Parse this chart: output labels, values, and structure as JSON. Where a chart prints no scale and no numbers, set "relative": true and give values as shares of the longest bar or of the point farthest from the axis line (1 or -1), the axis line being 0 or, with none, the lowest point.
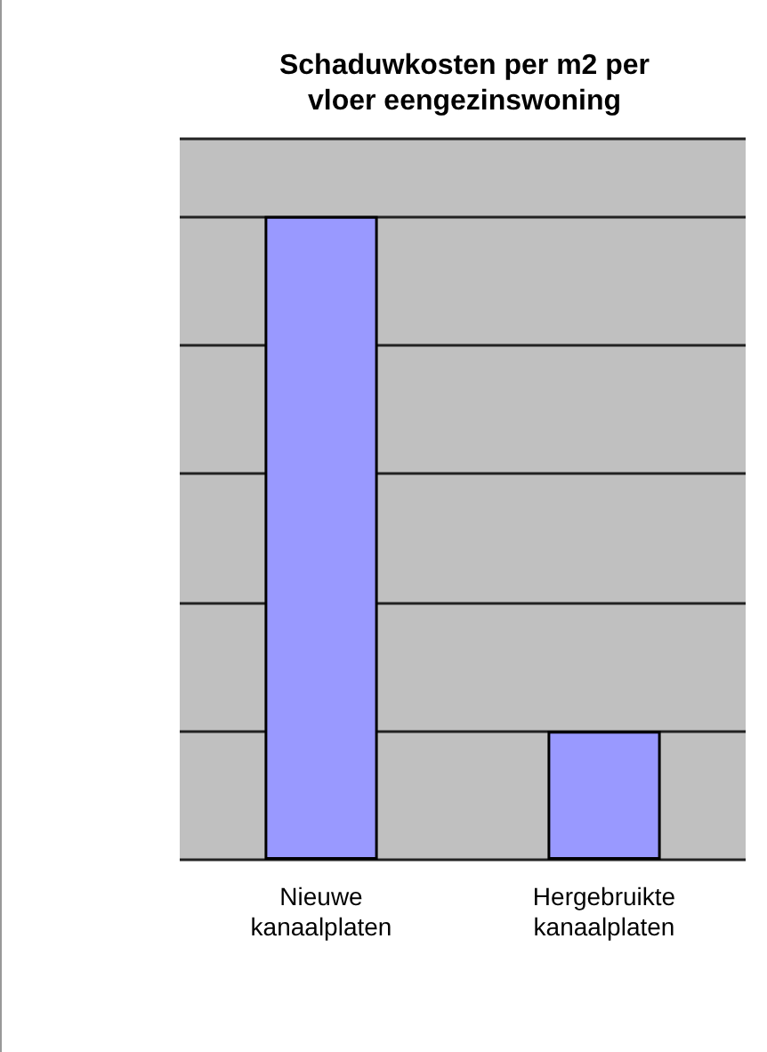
{
  "chart_data": {
    "type": "bar",
    "title": "Schaduwkosten per m2 per\nvloer eengezinswoning",
    "categories": [
      "Nieuwe\nkanaalplaten",
      "Hergebruikte\nkanaalplaten"
    ],
    "values": [
      1,
      0.2
    ],
    "color": "#9999ff",
    "relative": true,
    "grid": "y"
  }
}
